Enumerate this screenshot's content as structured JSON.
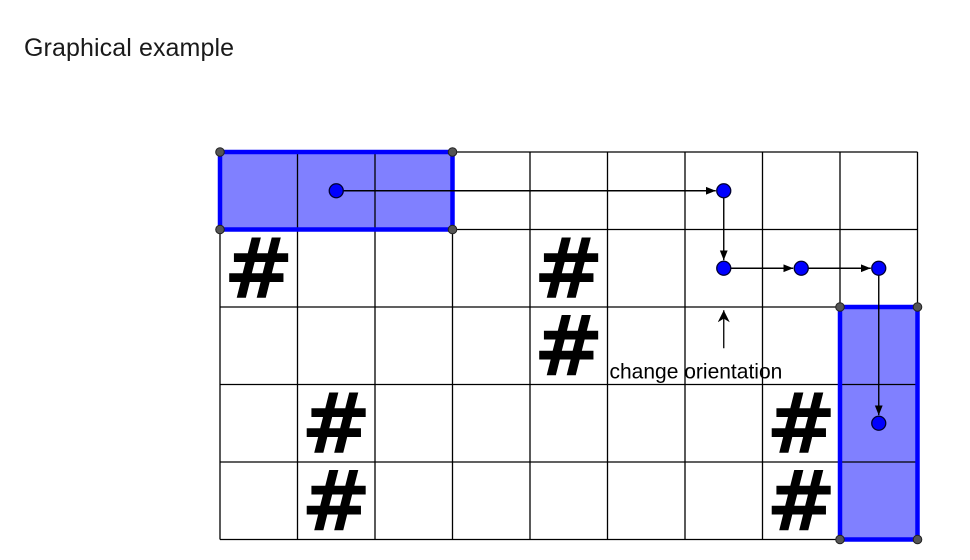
{
  "title": "Graphical example",
  "grid": {
    "columns": 9,
    "rows": 5,
    "obstacles": [
      {
        "col": 0,
        "row": 1
      },
      {
        "col": 4,
        "row": 1
      },
      {
        "col": 4,
        "row": 2
      },
      {
        "col": 1,
        "row": 3
      },
      {
        "col": 1,
        "row": 4
      },
      {
        "col": 7,
        "row": 3
      },
      {
        "col": 7,
        "row": 4
      }
    ],
    "obstacle_symbol": "#"
  },
  "blocks": [
    {
      "name": "start-block",
      "col": 0,
      "row": 0,
      "width": 3,
      "height": 1
    },
    {
      "name": "end-block",
      "col": 8,
      "row": 2,
      "width": 1,
      "height": 3
    }
  ],
  "path": [
    {
      "col": 1.5,
      "row": 0.5
    },
    {
      "col": 6.5,
      "row": 0.5
    },
    {
      "col": 6.5,
      "row": 1.5
    },
    {
      "col": 7.5,
      "row": 1.5
    },
    {
      "col": 8.5,
      "row": 1.5
    },
    {
      "col": 8.5,
      "row": 3.5
    }
  ],
  "annotation": {
    "text": "change orientation",
    "points_to": {
      "col": 6.5,
      "row": 1.5
    }
  },
  "colors": {
    "block_fill": "#8080ff",
    "block_border": "#0000ff",
    "path_node": "#0000ff",
    "grid_line": "#000000",
    "corner_dot": "#555555"
  }
}
